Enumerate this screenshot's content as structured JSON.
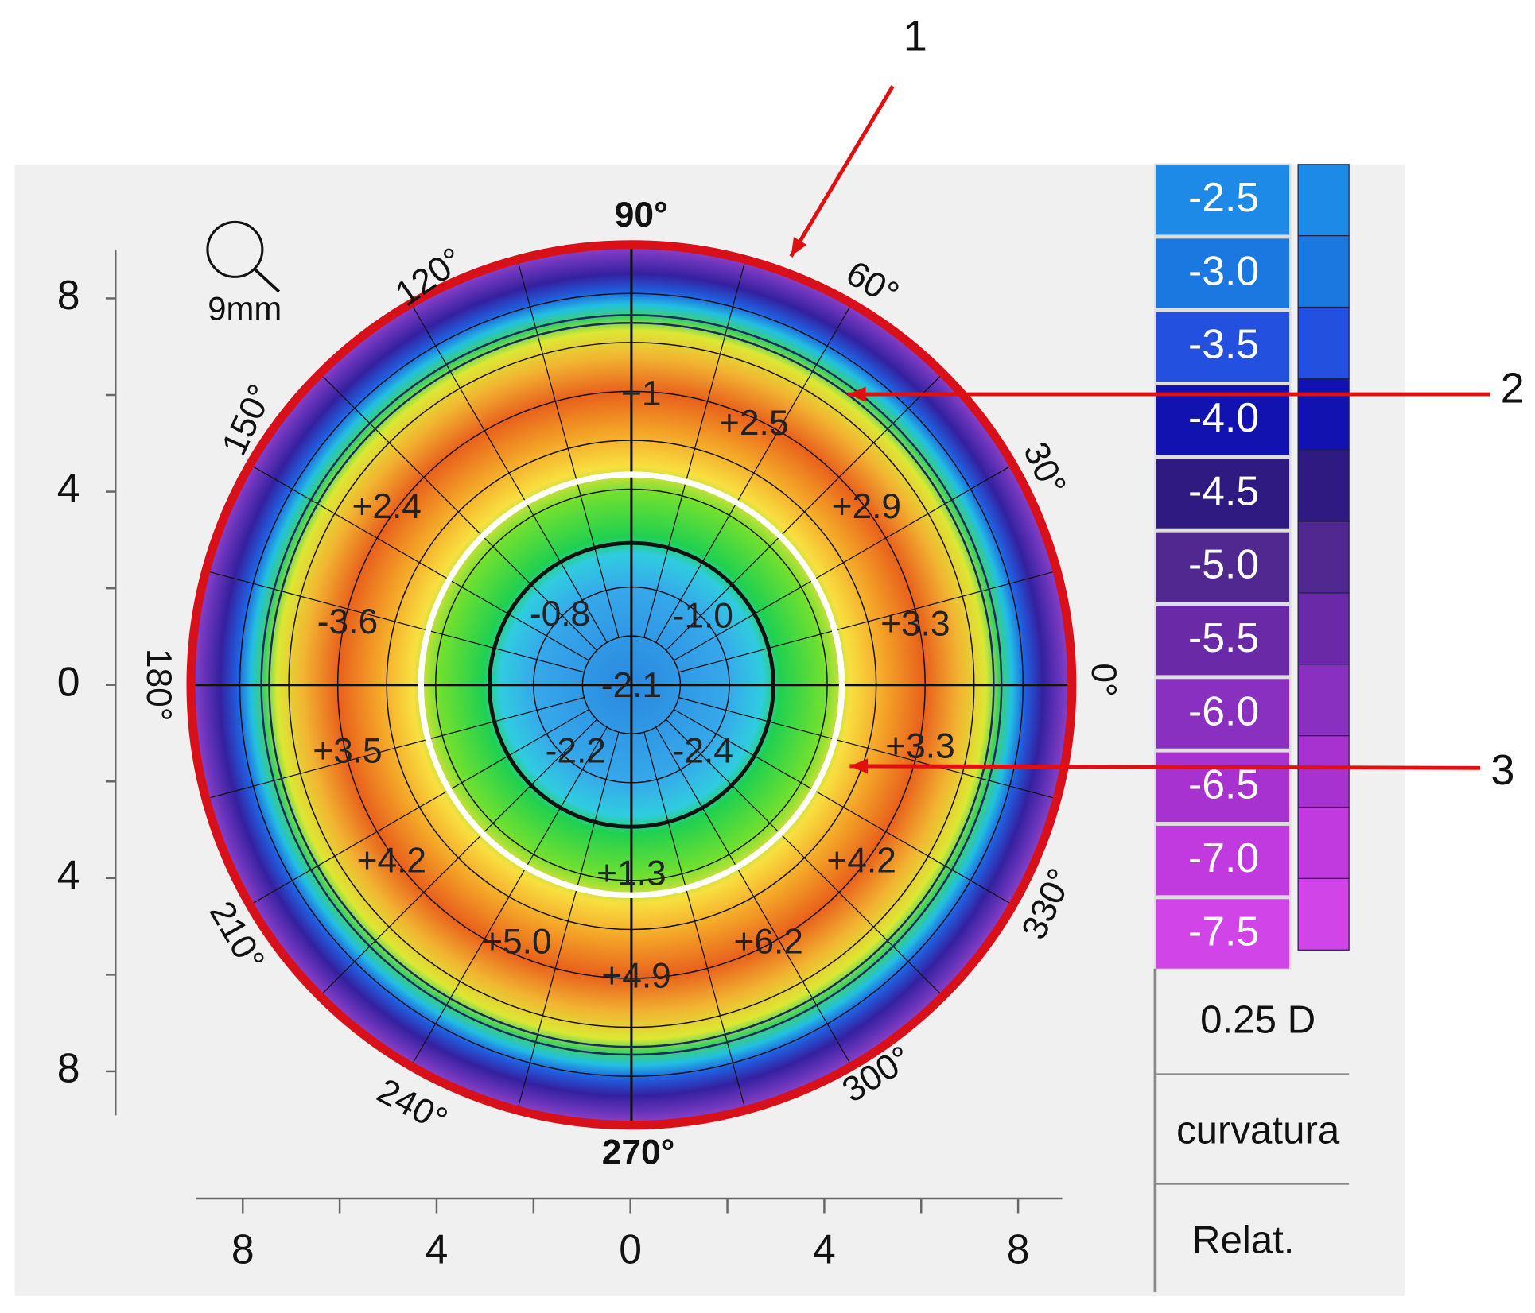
{
  "annotations": [
    "1",
    "2",
    "3"
  ],
  "zoom_label": "9mm",
  "left_axis": {
    "ticks": [
      "8",
      "4",
      "0",
      "4",
      "8"
    ]
  },
  "bottom_axis": {
    "ticks": [
      "8",
      "4",
      "0",
      "4",
      "8"
    ]
  },
  "angles": [
    "90°",
    "120°",
    "60°",
    "150°",
    "30°",
    "180°",
    "0°",
    "210°",
    "330°",
    "240°",
    "300°",
    "270°"
  ],
  "map_values": [
    "+1",
    "+2.5",
    "+2.4",
    "+2.9",
    "-3.6",
    "+3.3",
    "+3.5",
    "+3.3",
    "+4.2",
    "+4.2",
    "+5.0",
    "+6.2",
    "+4.9",
    "-0.8",
    "-1.0",
    "-2.1",
    "-2.2",
    "-2.4",
    "+1.3"
  ],
  "scale": {
    "steps": [
      {
        "label": "-2.5",
        "color": "#1e8ae8"
      },
      {
        "label": "-3.0",
        "color": "#1a78e0"
      },
      {
        "label": "-3.5",
        "color": "#2450e0"
      },
      {
        "label": "-4.0",
        "color": "#1212b0"
      },
      {
        "label": "-4.5",
        "color": "#2e1a80"
      },
      {
        "label": "-5.0",
        "color": "#502890"
      },
      {
        "label": "-5.5",
        "color": "#6a2aa8"
      },
      {
        "label": "-6.0",
        "color": "#8a30c0"
      },
      {
        "label": "-6.5",
        "color": "#a832d0"
      },
      {
        "label": "-7.0",
        "color": "#c03ae0"
      },
      {
        "label": "-7.5",
        "color": "#d044e8"
      }
    ],
    "step_size": "0.25 D",
    "map_type": "curvatura",
    "mode": "Relat."
  }
}
